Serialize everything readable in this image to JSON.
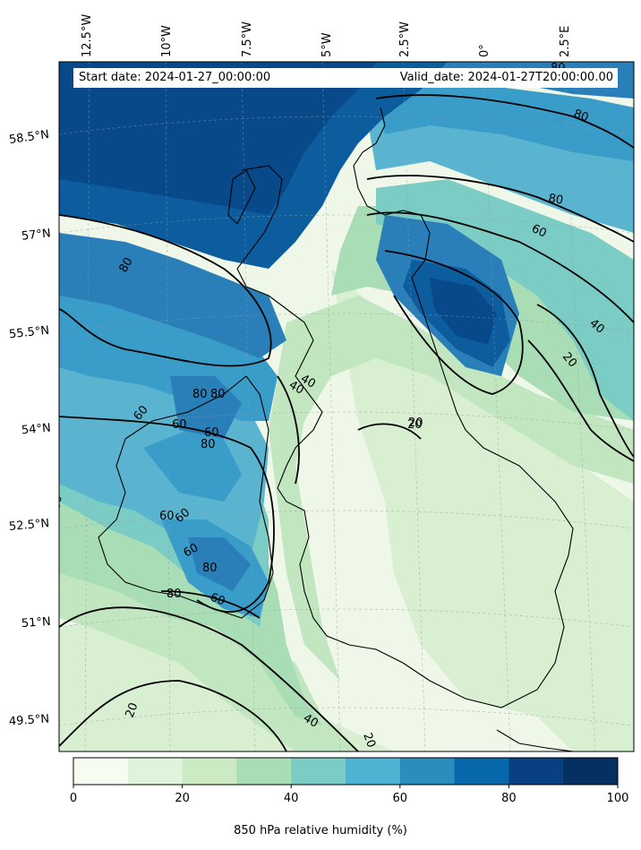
{
  "info": {
    "start_date": "Start date: 2024-01-27_00:00:00",
    "valid_date": "Valid_date: 2024-01-27T20:00:00.00"
  },
  "lon_ticks": [
    "12.5°W",
    "10°W",
    "7.5°W",
    "5°W",
    "2.5°W",
    "0°",
    "2.5°E"
  ],
  "lat_ticks": [
    "58.5°N",
    "57°N",
    "55.5°N",
    "54°N",
    "52.5°N",
    "51°N",
    "49.5°N"
  ],
  "contour_labels": [
    "80",
    "80",
    "60",
    "40",
    "20",
    "80",
    "60",
    "40",
    "20",
    "80",
    "80",
    "60",
    "60",
    "80",
    "60",
    "60",
    "80",
    "60",
    "80",
    "60",
    "40",
    "20",
    "20",
    "40",
    "20",
    "60",
    "80"
  ],
  "colorbar": {
    "label": "850 hPa relative humidity (%)",
    "ticks": [
      "0",
      "20",
      "40",
      "60",
      "80",
      "100"
    ],
    "colors": [
      "#f7fcf0",
      "#e0f3db",
      "#ccebc5",
      "#a8ddb5",
      "#7bccc4",
      "#4eb3d3",
      "#2b8cbe",
      "#0868ac",
      "#084081",
      "#053061"
    ],
    "min": 0,
    "max": 100
  },
  "palette": {
    "very_dry": "#eef7e8",
    "dry": "#d8efd2",
    "light": "#c2e7c0",
    "mid_green": "#a8ddb5",
    "teal": "#7bccc4",
    "light_blue": "#5ab4d0",
    "blue": "#3a9cc8",
    "mid_blue": "#2a7fb8",
    "dark_blue": "#0c5c9e",
    "deep_blue": "#08498a",
    "coast": "#000000"
  }
}
